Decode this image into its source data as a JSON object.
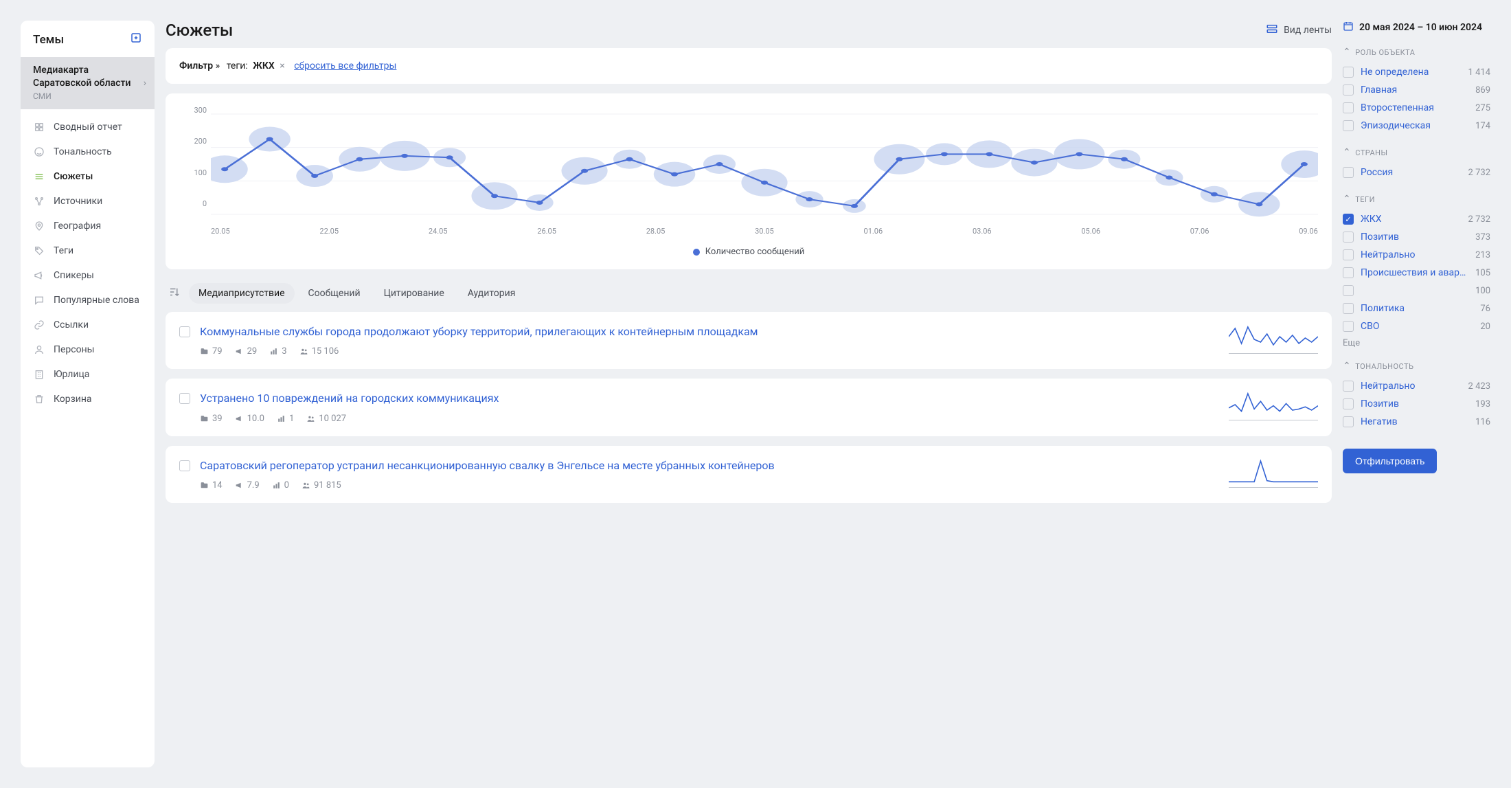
{
  "colors": {
    "accent": "#3262d4",
    "line": "#4a6fd6",
    "bubble_fill": "#c8d5f0",
    "grid": "#f0f1f4",
    "muted": "#8a8f99",
    "text": "#1a1a1a",
    "active_icon": "#7fbf4d"
  },
  "sidebar": {
    "title": "Темы",
    "topic": {
      "title": "Медиакарта Саратовской области",
      "sub": "СМИ"
    },
    "nav": [
      {
        "label": "Сводный отчет",
        "icon": "grid"
      },
      {
        "label": "Тональность",
        "icon": "smile"
      },
      {
        "label": "Сюжеты",
        "icon": "bars",
        "active": true
      },
      {
        "label": "Источники",
        "icon": "nodes"
      },
      {
        "label": "География",
        "icon": "pin"
      },
      {
        "label": "Теги",
        "icon": "tag"
      },
      {
        "label": "Спикеры",
        "icon": "megaphone"
      },
      {
        "label": "Популярные слова",
        "icon": "chat"
      },
      {
        "label": "Ссылки",
        "icon": "link"
      },
      {
        "label": "Персоны",
        "icon": "person"
      },
      {
        "label": "Юрлица",
        "icon": "building"
      },
      {
        "label": "Корзина",
        "icon": "trash"
      }
    ]
  },
  "page": {
    "title": "Сюжеты",
    "view_toggle": "Вид ленты"
  },
  "filter_bar": {
    "label": "Фильтр",
    "tags_label": "теги:",
    "tag_value": "ЖКХ",
    "reset": "сбросить все фильтры"
  },
  "chart": {
    "type": "line-bubble",
    "ylim": [
      0,
      300
    ],
    "yticks": [
      0,
      100,
      200,
      300
    ],
    "xticks": [
      "20.05",
      "22.05",
      "24.05",
      "26.05",
      "28.05",
      "30.05",
      "01.06",
      "03.06",
      "05.06",
      "07.06",
      "09.06"
    ],
    "points": [
      {
        "x": 0,
        "y": 135,
        "r": 20
      },
      {
        "x": 1,
        "y": 225,
        "r": 18
      },
      {
        "x": 2,
        "y": 115,
        "r": 16
      },
      {
        "x": 3,
        "y": 165,
        "r": 18
      },
      {
        "x": 4,
        "y": 175,
        "r": 22
      },
      {
        "x": 5,
        "y": 170,
        "r": 14
      },
      {
        "x": 6,
        "y": 55,
        "r": 20
      },
      {
        "x": 7,
        "y": 35,
        "r": 12
      },
      {
        "x": 8,
        "y": 130,
        "r": 20
      },
      {
        "x": 9,
        "y": 165,
        "r": 14
      },
      {
        "x": 10,
        "y": 120,
        "r": 18
      },
      {
        "x": 11,
        "y": 150,
        "r": 14
      },
      {
        "x": 12,
        "y": 95,
        "r": 20
      },
      {
        "x": 13,
        "y": 45,
        "r": 12
      },
      {
        "x": 14,
        "y": 25,
        "r": 10
      },
      {
        "x": 15,
        "y": 165,
        "r": 22
      },
      {
        "x": 16,
        "y": 180,
        "r": 16
      },
      {
        "x": 17,
        "y": 180,
        "r": 20
      },
      {
        "x": 18,
        "y": 155,
        "r": 20
      },
      {
        "x": 19,
        "y": 180,
        "r": 22
      },
      {
        "x": 20,
        "y": 165,
        "r": 14
      },
      {
        "x": 21,
        "y": 110,
        "r": 12
      },
      {
        "x": 22,
        "y": 60,
        "r": 12
      },
      {
        "x": 23,
        "y": 30,
        "r": 18
      },
      {
        "x": 24,
        "y": 150,
        "r": 20
      }
    ],
    "line_color": "#4a6fd6",
    "bubble_color": "#c8d5f0",
    "background": "#ffffff",
    "grid_color": "#f0f1f4",
    "legend": "Количество сообщений"
  },
  "sort": {
    "tabs": [
      "Медиаприсутствие",
      "Сообщений",
      "Цитирование",
      "Аудитория"
    ],
    "active": 0
  },
  "stories": [
    {
      "title": "Коммунальные службы города продолжают уборку территорий, прилегающих к контейнерным площадкам",
      "stats": {
        "folders": "79",
        "mega": "29",
        "bars": "3",
        "people": "15 106"
      },
      "spark": [
        18,
        30,
        8,
        32,
        14,
        10,
        22,
        6,
        18,
        10,
        20,
        8,
        16,
        10,
        18
      ]
    },
    {
      "title": "Устранено 10 повреждений на городских коммуникациях",
      "stats": {
        "folders": "39",
        "mega": "10.0",
        "bars": "1",
        "people": "10 027"
      },
      "spark": [
        14,
        20,
        8,
        40,
        12,
        26,
        10,
        18,
        8,
        22,
        10,
        12,
        16,
        10,
        18
      ]
    },
    {
      "title": "Саратовский регоператор устранил несанкционированную свалку в Энгельсе на месте убранных контейнеров",
      "stats": {
        "folders": "14",
        "mega": "7.9",
        "bars": "0",
        "people": "91 815"
      },
      "spark": [
        2,
        2,
        2,
        2,
        2,
        38,
        4,
        2,
        2,
        2,
        2,
        2,
        2,
        2,
        2
      ]
    }
  ],
  "rightpanel": {
    "date_range": "20 мая 2024 – 10 июн 2024",
    "facets": [
      {
        "title": "РОЛЬ ОБЪЕКТА",
        "items": [
          {
            "label": "Не определена",
            "count": "1 414",
            "checked": false
          },
          {
            "label": "Главная",
            "count": "869",
            "checked": false
          },
          {
            "label": "Второстепенная",
            "count": "275",
            "checked": false
          },
          {
            "label": "Эпизодическая",
            "count": "174",
            "checked": false
          }
        ]
      },
      {
        "title": "СТРАНЫ",
        "items": [
          {
            "label": "Россия",
            "count": "2 732",
            "checked": false
          }
        ]
      },
      {
        "title": "ТЕГИ",
        "items": [
          {
            "label": "ЖКХ",
            "count": "2 732",
            "checked": true
          },
          {
            "label": "Позитив",
            "count": "373",
            "checked": false
          },
          {
            "label": "Нейтрально",
            "count": "213",
            "checked": false
          },
          {
            "label": "Происшествия и аварии",
            "count": "105",
            "checked": false
          },
          {
            "label": "",
            "count": "100",
            "checked": false
          },
          {
            "label": "Политика",
            "count": "76",
            "checked": false
          },
          {
            "label": "СВО",
            "count": "20",
            "checked": false
          }
        ],
        "more": "Еще"
      },
      {
        "title": "ТОНАЛЬНОСТЬ",
        "items": [
          {
            "label": "Нейтрально",
            "count": "2 423",
            "checked": false
          },
          {
            "label": "Позитив",
            "count": "193",
            "checked": false
          },
          {
            "label": "Негатив",
            "count": "116",
            "checked": false
          }
        ]
      }
    ],
    "filter_button": "Отфильтровать"
  }
}
